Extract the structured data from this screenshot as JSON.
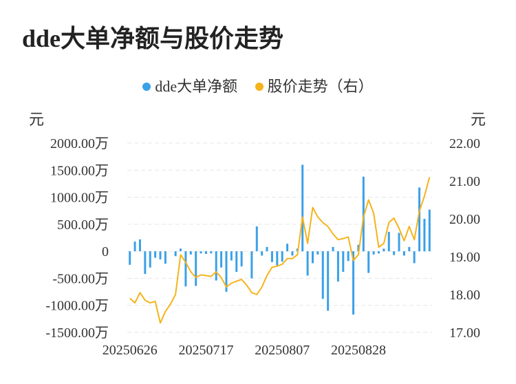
{
  "title": "dde大单净额与股价走势",
  "legend": [
    {
      "name": "dde大单净额",
      "color": "#3aa0e8"
    },
    {
      "name": "股价走势（右）",
      "color": "#f5b31a"
    }
  ],
  "units": {
    "left": "元",
    "right": "元"
  },
  "chart_data": {
    "type": "bar+line",
    "title": "dde大单净额与股价走势",
    "left_axis": {
      "min": -1500,
      "max": 2000,
      "ticks": [
        2000,
        1500,
        1000,
        500,
        0,
        -500,
        -1000,
        -1500
      ],
      "tick_labels": [
        "2000.00万",
        "1500.00万",
        "1000.00万",
        "500.00万",
        "0",
        "-500.00万",
        "-1000.00万",
        "-1500.00万"
      ],
      "unit": "元"
    },
    "right_axis": {
      "min": 17.0,
      "max": 22.0,
      "ticks": [
        22,
        21,
        20,
        19,
        18,
        17
      ],
      "tick_labels": [
        "22.00",
        "21.00",
        "20.00",
        "19.00",
        "18.00",
        "17.00"
      ],
      "unit": "元"
    },
    "x_tick_labels": [
      {
        "label": "20250626",
        "index": 0
      },
      {
        "label": "20250717",
        "index": 15
      },
      {
        "label": "20250807",
        "index": 30
      },
      {
        "label": "20250828",
        "index": 45
      }
    ],
    "grid": "horizontal dashed",
    "legend_position": "top",
    "series": [
      {
        "name": "dde大单净额",
        "kind": "bar",
        "color": "#3aa0e8",
        "values": [
          -250,
          180,
          220,
          -420,
          -300,
          -120,
          -150,
          -230,
          0,
          -90,
          50,
          -650,
          -60,
          -640,
          -40,
          -50,
          -40,
          -540,
          -300,
          -750,
          -170,
          -380,
          -280,
          0,
          -500,
          460,
          -80,
          80,
          -200,
          -260,
          -190,
          140,
          -80,
          50,
          1600,
          -450,
          -220,
          -60,
          -880,
          -1100,
          80,
          -560,
          -380,
          -180,
          -1170,
          120,
          1380,
          -400,
          -60,
          -40,
          50,
          360,
          -70,
          340,
          -80,
          80,
          -220,
          1180,
          600,
          770
        ]
      },
      {
        "name": "股价走势（右）",
        "kind": "line",
        "color": "#f5b31a",
        "values": [
          17.9,
          17.78,
          18.05,
          17.85,
          17.78,
          17.82,
          17.25,
          17.55,
          17.75,
          18.0,
          19.05,
          18.85,
          18.6,
          18.45,
          18.52,
          18.5,
          18.48,
          18.6,
          18.45,
          18.2,
          18.3,
          18.35,
          18.4,
          18.25,
          18.05,
          18.0,
          18.2,
          18.5,
          18.72,
          18.75,
          18.8,
          18.95,
          18.95,
          19.05,
          20.05,
          19.35,
          20.3,
          20.05,
          19.9,
          19.8,
          19.6,
          19.45,
          19.48,
          19.52,
          18.9,
          19.05,
          20.05,
          20.5,
          20.15,
          19.25,
          19.35,
          19.9,
          20.02,
          19.75,
          19.42,
          19.8,
          19.45,
          20.2,
          20.6,
          21.1
        ]
      }
    ]
  }
}
